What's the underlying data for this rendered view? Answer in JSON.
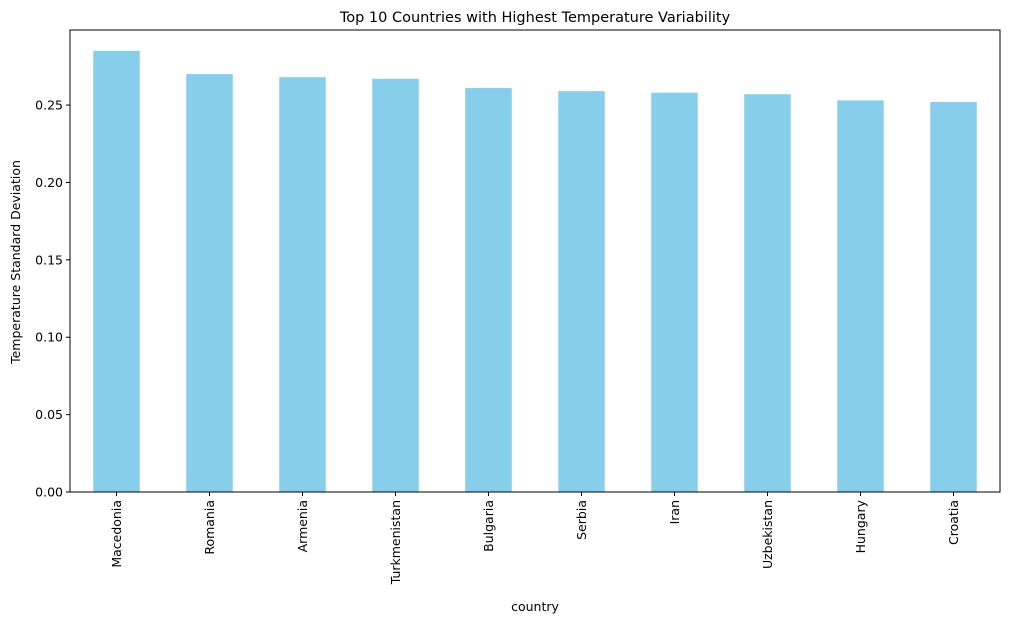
{
  "chart_data": {
    "type": "bar",
    "title": "Top 10 Countries with Highest Temperature Variability",
    "xlabel": "country",
    "ylabel": "Temperature Standard Deviation",
    "categories": [
      "Macedonia",
      "Romania",
      "Armenia",
      "Turkmenistan",
      "Bulgaria",
      "Serbia",
      "Iran",
      "Uzbekistan",
      "Hungary",
      "Croatia"
    ],
    "values": [
      0.285,
      0.27,
      0.268,
      0.267,
      0.261,
      0.259,
      0.258,
      0.257,
      0.253,
      0.252
    ],
    "ylim": [
      0,
      0.2985
    ],
    "yticks": [
      "0.00",
      "0.05",
      "0.10",
      "0.15",
      "0.20",
      "0.25"
    ],
    "bar_color": "#87ceeb",
    "grid": false,
    "legend": "none"
  }
}
